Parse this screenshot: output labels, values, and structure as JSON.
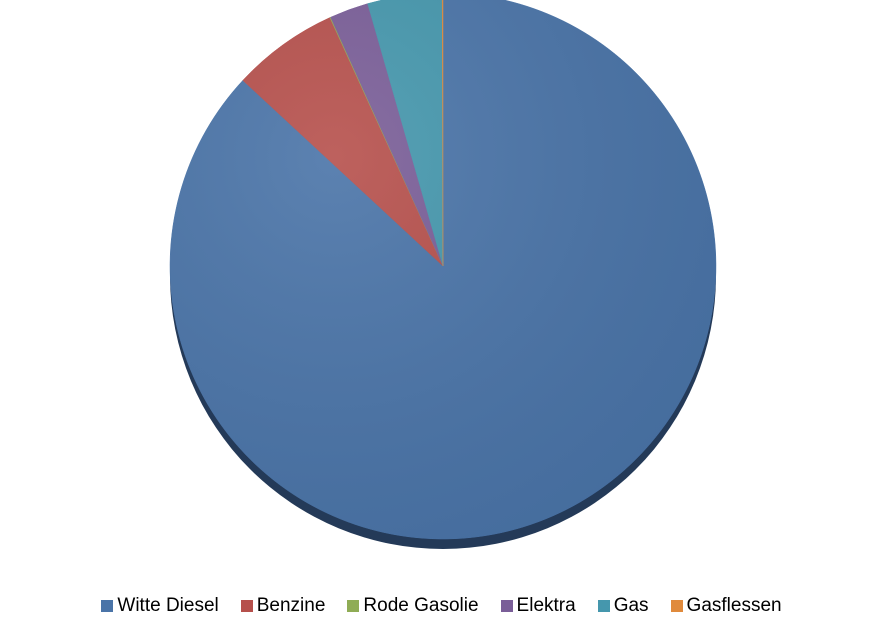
{
  "chart_data": {
    "type": "pie",
    "title": "",
    "slices": [
      {
        "label": "Witte Diesel",
        "value": 86.9,
        "color": "#4a74a8"
      },
      {
        "label": "Benzine",
        "value": 6.3,
        "color": "#b6504c"
      },
      {
        "label": "Rode Gasolie",
        "value": 0.05,
        "color": "#8fac55"
      },
      {
        "label": "Elektra",
        "value": 2.3,
        "color": "#7a5e98"
      },
      {
        "label": "Gas",
        "value": 4.4,
        "color": "#4597ad"
      },
      {
        "label": "Gasflessen",
        "value": 0.05,
        "color": "#e08a3c"
      }
    ],
    "start_angle": "12 o'clock",
    "direction": "clockwise",
    "legend_position": "bottom"
  }
}
